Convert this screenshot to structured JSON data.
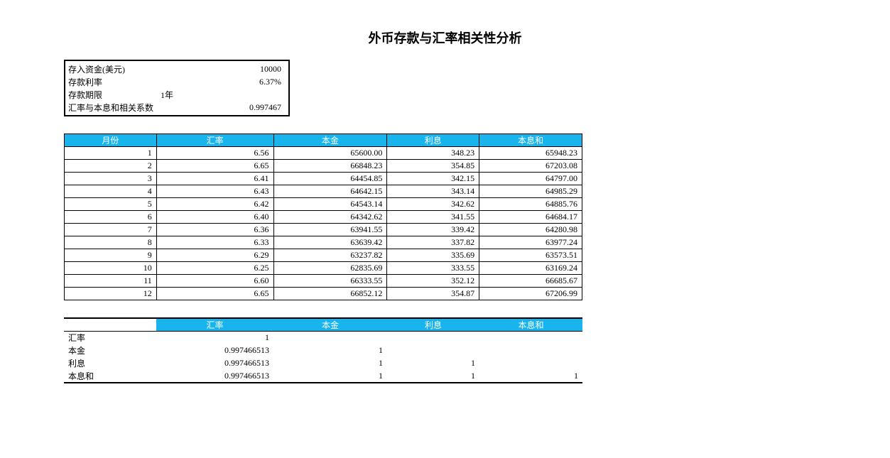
{
  "title": "外币存款与汇率相关性分析",
  "styling": {
    "header_bg_color": "#1ab4ed",
    "header_text_color": "#ffffff",
    "border_color": "#000000",
    "title_fontsize": 18,
    "body_fontsize": 12
  },
  "info_box": {
    "rows": [
      {
        "label": "存入资金(美元)",
        "mid": "",
        "value": "10000"
      },
      {
        "label": "存款利率",
        "mid": "",
        "value": "6.37%"
      },
      {
        "label": "存款期限",
        "mid": "1年",
        "value": ""
      },
      {
        "label": "汇率与本息和相关系数",
        "mid": "",
        "value": "0.997467"
      }
    ]
  },
  "main_table": {
    "columns": [
      "月份",
      "汇率",
      "本金",
      "利息",
      "本息和"
    ],
    "rows": [
      [
        "1",
        "6.56",
        "65600.00",
        "348.23",
        "65948.23"
      ],
      [
        "2",
        "6.65",
        "66848.23",
        "354.85",
        "67203.08"
      ],
      [
        "3",
        "6.41",
        "64454.85",
        "342.15",
        "64797.00"
      ],
      [
        "4",
        "6.43",
        "64642.15",
        "343.14",
        "64985.29"
      ],
      [
        "5",
        "6.42",
        "64543.14",
        "342.62",
        "64885.76"
      ],
      [
        "6",
        "6.40",
        "64342.62",
        "341.55",
        "64684.17"
      ],
      [
        "7",
        "6.36",
        "63941.55",
        "339.42",
        "64280.98"
      ],
      [
        "8",
        "6.33",
        "63639.42",
        "337.82",
        "63977.24"
      ],
      [
        "9",
        "6.29",
        "63237.82",
        "335.69",
        "63573.51"
      ],
      [
        "10",
        "6.25",
        "62835.69",
        "333.55",
        "63169.24"
      ],
      [
        "11",
        "6.60",
        "66333.55",
        "352.12",
        "66685.67"
      ],
      [
        "12",
        "6.65",
        "66852.12",
        "354.87",
        "67206.99"
      ]
    ]
  },
  "corr_table": {
    "columns": [
      "",
      "汇率",
      "本金",
      "利息",
      "本息和"
    ],
    "rows": [
      [
        "汇率",
        "1",
        "",
        "",
        ""
      ],
      [
        "本金",
        "0.997466513",
        "1",
        "",
        ""
      ],
      [
        "利息",
        "0.997466513",
        "1",
        "1",
        ""
      ],
      [
        "本息和",
        "0.997466513",
        "1",
        "1",
        "1"
      ]
    ]
  }
}
